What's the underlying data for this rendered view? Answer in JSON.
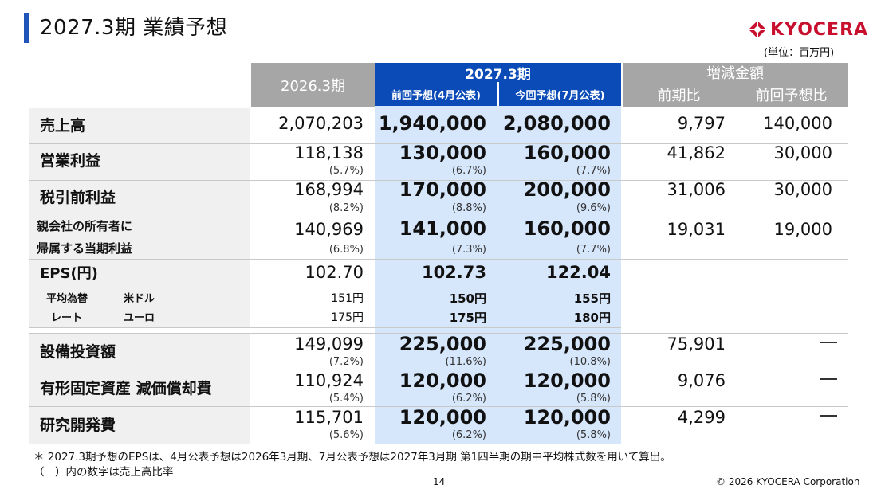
{
  "header": {
    "title": "2027.3期 業績予想",
    "brand": "KYOCERA",
    "unit": "(単位：百万円)"
  },
  "columns": {
    "prev_year": "2026.3期",
    "forecast_group": "2027.3期",
    "forecast_prev": "前回予想(4月公表)",
    "forecast_now": "今回予想(7月公表)",
    "change_group": "増減金額",
    "change_yoy": "前期比",
    "change_prev": "前回予想比"
  },
  "rows": [
    {
      "label": "売上高",
      "prev": "2,070,203",
      "f1": "1,940,000",
      "f2": "2,080,000",
      "yoy": "9,797",
      "vsprev": "140,000"
    },
    {
      "label": "営業利益",
      "prev": "118,138",
      "prev_pct": "(5.7%)",
      "f1": "130,000",
      "f1_pct": "(6.7%)",
      "f2": "160,000",
      "f2_pct": "(7.7%)",
      "yoy": "41,862",
      "vsprev": "30,000"
    },
    {
      "label": "税引前利益",
      "prev": "168,994",
      "prev_pct": "(8.2%)",
      "f1": "170,000",
      "f1_pct": "(8.8%)",
      "f2": "200,000",
      "f2_pct": "(9.6%)",
      "yoy": "31,006",
      "vsprev": "30,000"
    },
    {
      "label_line1": "親会社の所有者に",
      "label_line2": "帰属する当期利益",
      "prev": "140,969",
      "prev_pct": "(6.8%)",
      "f1": "141,000",
      "f1_pct": "(7.3%)",
      "f2": "160,000",
      "f2_pct": "(7.7%)",
      "yoy": "19,031",
      "vsprev": "19,000"
    },
    {
      "label": "EPS(円)",
      "prev": "102.70",
      "f1": "102.73",
      "f2": "122.04"
    }
  ],
  "fx": {
    "label_line1": "平均為替",
    "label_line2": "レート",
    "usd": {
      "label": "米ドル",
      "prev": "151円",
      "f1": "150円",
      "f2": "155円"
    },
    "eur": {
      "label": "ユーロ",
      "prev": "175円",
      "f1": "175円",
      "f2": "180円"
    }
  },
  "rows2": [
    {
      "label": "設備投資額",
      "prev": "149,099",
      "prev_pct": "(7.2%)",
      "f1": "225,000",
      "f1_pct": "(11.6%)",
      "f2": "225,000",
      "f2_pct": "(10.8%)",
      "yoy": "75,901",
      "vsprev": "—"
    },
    {
      "label": "有形固定資産 減価償却費",
      "prev": "110,924",
      "prev_pct": "(5.4%)",
      "f1": "120,000",
      "f1_pct": "(6.2%)",
      "f2": "120,000",
      "f2_pct": "(5.8%)",
      "yoy": "9,076",
      "vsprev": "—"
    },
    {
      "label": "研究開発費",
      "prev": "115,701",
      "prev_pct": "(5.6%)",
      "f1": "120,000",
      "f1_pct": "(6.2%)",
      "f2": "120,000",
      "f2_pct": "(5.8%)",
      "yoy": "4,299",
      "vsprev": "—"
    }
  ],
  "footer": {
    "note1": "＊ 2027.3期予想のEPSは、4月公表予想は2026年3月期、7月公表予想は2027年3月期 第1四半期の期中平均株式数を用いて算出。",
    "note2": "（　）内の数字は売上高比率",
    "page": "14",
    "copyright": "© 2026 KYOCERA Corporation"
  },
  "colors": {
    "accent_blue": "#0a4bb8",
    "light_blue": "#d6e6fb",
    "header_gray": "#a6a6a6",
    "brand_red": "#c8102e"
  }
}
